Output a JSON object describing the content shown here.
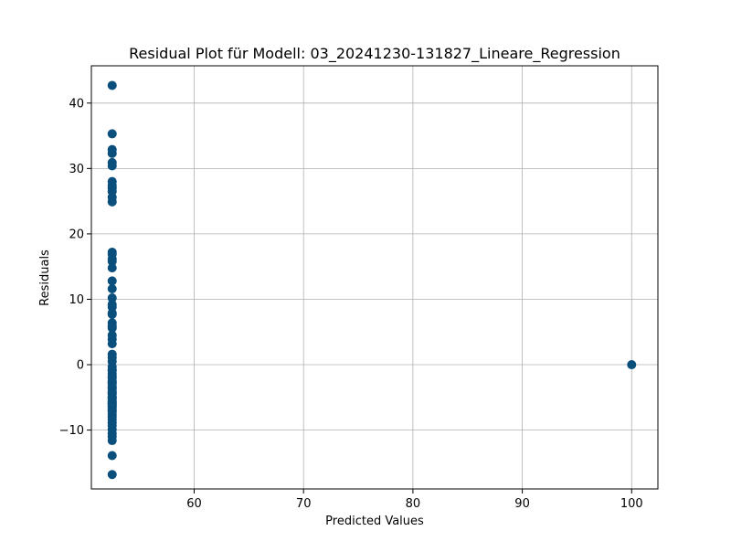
{
  "chart_data": {
    "type": "scatter",
    "title": "Residual Plot für Modell: 03_20241230-131827_Lineare_Regression",
    "xlabel": "Predicted Values",
    "ylabel": "Residuals",
    "xlim": [
      50.6,
      102.4
    ],
    "ylim": [
      -19.0,
      45.7
    ],
    "xticks": [
      60,
      70,
      80,
      90,
      100
    ],
    "xtick_labels": [
      "60",
      "70",
      "80",
      "90",
      "100"
    ],
    "yticks": [
      -10,
      0,
      10,
      20,
      30,
      40
    ],
    "ytick_labels": [
      "−10",
      "0",
      "10",
      "20",
      "30",
      "40"
    ],
    "grid": true,
    "marker_color": "#0b4f7d",
    "grid_color": "#b0b0b0",
    "series": [
      {
        "x": [
          52.5,
          52.5,
          52.5,
          52.5,
          52.5,
          52.5,
          52.5,
          52.5,
          52.5,
          52.5,
          52.5,
          52.5,
          52.5,
          52.5,
          52.5,
          52.5,
          52.5,
          52.5,
          52.5,
          52.5,
          52.5,
          52.5,
          52.5,
          52.5,
          52.5,
          52.5,
          52.5,
          52.5,
          52.5,
          52.5,
          52.5,
          52.5,
          52.5,
          52.5,
          52.5,
          52.5,
          52.5,
          52.5,
          52.5,
          52.5,
          52.5,
          52.5,
          52.5,
          52.5,
          52.5,
          52.5,
          52.5,
          52.5,
          52.5,
          52.5,
          52.5,
          52.5,
          52.5,
          52.5,
          52.5,
          52.5,
          52.5,
          52.5,
          52.5,
          52.5,
          52.5,
          52.5,
          52.5,
          52.5,
          52.5,
          52.5,
          52.5,
          52.5,
          52.5,
          52.5,
          52.5,
          52.5,
          100.0
        ],
        "y": [
          42.7,
          35.3,
          32.9,
          32.3,
          30.9,
          30.4,
          28.0,
          27.4,
          27.0,
          26.5,
          25.6,
          24.9,
          17.2,
          16.9,
          16.2,
          15.8,
          14.8,
          12.8,
          11.6,
          10.2,
          9.2,
          8.8,
          7.9,
          7.7,
          6.4,
          5.9,
          5.6,
          4.5,
          3.9,
          3.2,
          1.6,
          1.1,
          0.5,
          -0.3,
          -0.9,
          -1.4,
          -2.0,
          -2.5,
          -2.9,
          -3.3,
          -3.7,
          -4.1,
          -4.5,
          -4.9,
          -5.2,
          -5.5,
          -5.9,
          -6.2,
          -6.5,
          -6.8,
          -7.2,
          -7.6,
          -8.0,
          -8.4,
          -8.9,
          -9.3,
          -9.9,
          -10.5,
          -11.0,
          -11.6,
          -13.9,
          -16.8,
          -0.8,
          -1.8,
          -2.7,
          -3.5,
          -4.3,
          -5.0,
          -5.7,
          -6.0,
          -6.4,
          -7.0,
          0.0
        ]
      }
    ]
  }
}
